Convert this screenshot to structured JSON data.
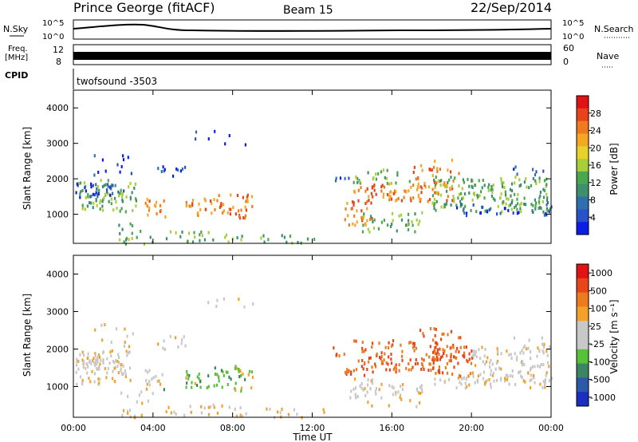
{
  "header": {
    "site": "Prince George (fitACF)",
    "beam": "Beam 15",
    "date": "22/Sep/2014"
  },
  "top_panels": {
    "nsky_label": "N.Sky",
    "nsky_ticks": [
      "10^5",
      "10^0"
    ],
    "nsearch_label": "N.Search",
    "nsearch_ticks": [
      "10^5",
      "10^0"
    ],
    "freq_label_1": "Freq.",
    "freq_label_2": "[MHz]",
    "freq_ticks": [
      "12",
      "8"
    ],
    "nave_label": "Nave",
    "nave_ticks": [
      "60",
      "0"
    ],
    "cpid_label": "CPID",
    "cpid_text": "twofsound -3503"
  },
  "chart_data": [
    {
      "type": "heatmap",
      "name": "power",
      "ylabel": "Slant Range [km]",
      "ylim": [
        180,
        4500
      ],
      "yticks": [
        1000,
        2000,
        3000,
        4000
      ],
      "xlim": [
        0,
        24
      ],
      "xticks": [
        "00:00",
        "04:00",
        "08:00",
        "12:00",
        "16:00",
        "20:00",
        "00:00"
      ],
      "colorbar_label": "Power [dB]",
      "colorbar_ticks": [
        "4",
        "8",
        "12",
        "16",
        "20",
        "24",
        "28"
      ],
      "colorbar_colors": [
        "#0a1ee6",
        "#2a52c8",
        "#2f6fb0",
        "#3f8e6e",
        "#49a84f",
        "#a8cf3a",
        "#e6d22a",
        "#f5a623",
        "#f07b1e",
        "#e8431a",
        "#e01414"
      ]
    },
    {
      "type": "heatmap",
      "name": "velocity",
      "ylabel": "Slant Range [km]",
      "ylim": [
        180,
        4500
      ],
      "yticks": [
        1000,
        2000,
        3000,
        4000
      ],
      "xlim": [
        0,
        24
      ],
      "xticks": [
        "00:00",
        "04:00",
        "08:00",
        "12:00",
        "16:00",
        "20:00",
        "00:00"
      ],
      "xlabel": "Time UT",
      "colorbar_label": "Velocity [m s⁻¹]",
      "colorbar_ticks": [
        "1000",
        "500",
        "100",
        "25",
        "-25",
        "-100",
        "-500",
        "-1000"
      ],
      "colorbar_colors": [
        "#1a2fbf",
        "#2c5aa8",
        "#3b8464",
        "#56c23a",
        "#c8c8c8",
        "#c8c8c8",
        "#f2a12a",
        "#ee7a1e",
        "#e8451a",
        "#e01414"
      ]
    }
  ]
}
